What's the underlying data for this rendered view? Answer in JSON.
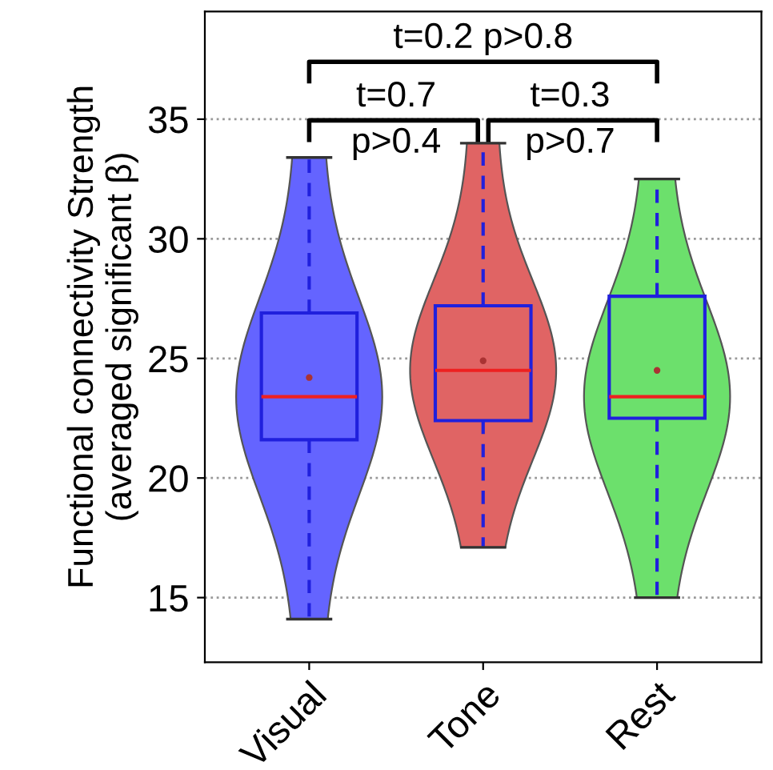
{
  "chart_data": {
    "type": "box",
    "ylabel": "Functional connectivity Strength\n(averaged significant β)",
    "categories": [
      "Visual",
      "Tone",
      "Rest"
    ],
    "colors": [
      "#6464ff",
      "#e06464",
      "#6ce06c"
    ],
    "boxes": [
      {
        "low": 14.1,
        "q1": 21.6,
        "median": 23.4,
        "q3": 26.9,
        "high": 33.4,
        "mean": 24.2
      },
      {
        "low": 17.1,
        "q1": 22.4,
        "median": 24.5,
        "q3": 27.2,
        "high": 34.0,
        "mean": 24.9
      },
      {
        "low": 15.0,
        "q1": 22.5,
        "median": 23.4,
        "q3": 27.6,
        "high": 32.5,
        "mean": 24.5
      }
    ],
    "annotations": [
      "t=0.2 p>0.8",
      "t=0.7",
      "p>0.4",
      "t=0.3",
      "p>0.7"
    ],
    "ylim": [
      12.3,
      39.5
    ],
    "yticks": [
      15,
      20,
      25,
      30,
      35
    ],
    "grid": "y"
  }
}
